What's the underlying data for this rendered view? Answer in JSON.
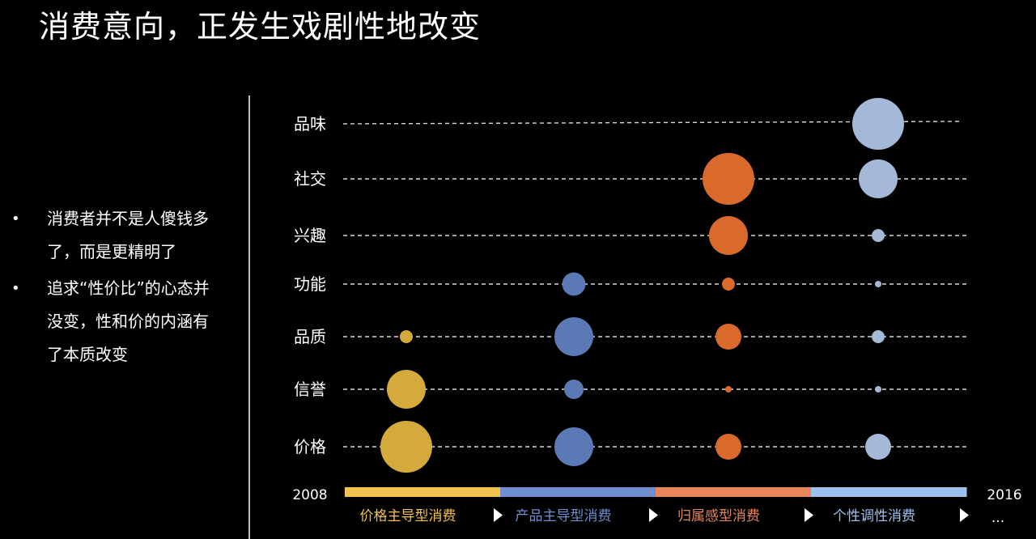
{
  "title": "消费意向，正发生戏剧性地改变",
  "bullets": [
    "消费者并不是人傻钱多了，而是更精明了",
    "追求“性价比”的心态并没变，性和价的内涵有了本质改变"
  ],
  "chart_data": {
    "type": "scatter",
    "title": "",
    "categories": [
      "品味",
      "社交",
      "兴趣",
      "功能",
      "品质",
      "信誉",
      "价格"
    ],
    "phases": [
      {
        "name": "价格主导型消费",
        "color": "#f2c14e"
      },
      {
        "name": "产品主导型消费",
        "color": "#6f8fd0"
      },
      {
        "name": "归属感型消费",
        "color": "#e9845c"
      },
      {
        "name": "个性调性消费",
        "color": "#9ec0ee"
      }
    ],
    "start_label": "2008",
    "end_label": "2016",
    "more_label": "...",
    "series": [
      {
        "name": "价格主导型消费",
        "color": "#d4aa3c",
        "values": [
          0,
          0,
          0,
          0,
          1,
          3,
          4
        ]
      },
      {
        "name": "产品主导型消费",
        "color": "#5b7ab5",
        "values": [
          0,
          0,
          0,
          1.8,
          3,
          1.5,
          3
        ]
      },
      {
        "name": "归属感型消费",
        "color": "#d96a2c",
        "values": [
          0,
          4,
          3,
          1,
          2,
          0.5,
          2
        ]
      },
      {
        "name": "个性调性消费",
        "color": "#a4b8d8",
        "values": [
          4,
          3,
          1,
          0.5,
          1,
          0.5,
          2
        ]
      }
    ]
  }
}
